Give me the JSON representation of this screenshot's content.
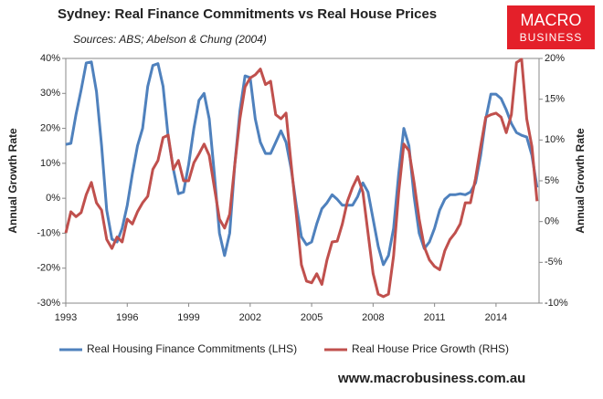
{
  "chart_data": {
    "type": "line",
    "title": "Sydney: Real Finance Commitments vs Real House Prices",
    "subtitle": "Sources: ABS; Abelson & Chung (2004)",
    "y_label": "Annual Growth Rate",
    "y2_label": "Annual Growth Rate",
    "x": [
      1993,
      1993.25,
      1993.5,
      1993.75,
      1994,
      1994.25,
      1994.5,
      1994.75,
      1995,
      1995.25,
      1995.5,
      1995.75,
      1996,
      1996.25,
      1996.5,
      1996.75,
      1997,
      1997.25,
      1997.5,
      1997.75,
      1998,
      1998.25,
      1998.5,
      1998.75,
      1999,
      1999.25,
      1999.5,
      1999.75,
      2000,
      2000.25,
      2000.5,
      2000.75,
      2001,
      2001.25,
      2001.5,
      2001.75,
      2002,
      2002.25,
      2002.5,
      2002.75,
      2003,
      2003.25,
      2003.5,
      2003.75,
      2004,
      2004.25,
      2004.5,
      2004.75,
      2005,
      2005.25,
      2005.5,
      2005.75,
      2006,
      2006.25,
      2006.5,
      2006.75,
      2007,
      2007.25,
      2007.5,
      2007.75,
      2008,
      2008.25,
      2008.5,
      2008.75,
      2009,
      2009.25,
      2009.5,
      2009.75,
      2010,
      2010.25,
      2010.5,
      2010.75,
      2011,
      2011.25,
      2011.5,
      2011.75,
      2012,
      2012.25,
      2012.5,
      2012.75,
      2013,
      2013.25,
      2013.5,
      2013.75,
      2014,
      2014.25,
      2014.5,
      2014.75,
      2015,
      2015.25,
      2015.5,
      2015.75,
      2016
    ],
    "series": [
      {
        "name": "Real Housing Finance Commitments (LHS)",
        "color": "#4f81bd",
        "values": [
          15.4,
          15.7,
          24,
          31,
          38.7,
          39,
          30.5,
          15,
          -3.4,
          -11.7,
          -12.5,
          -8.6,
          -2,
          7,
          15,
          20,
          32,
          38,
          38.5,
          32,
          17.5,
          8.4,
          1.3,
          1.8,
          9.7,
          20,
          28,
          30,
          22.7,
          7,
          -10,
          -16.4,
          -10,
          9.7,
          25,
          35,
          34.5,
          22.7,
          16,
          12.8,
          12.8,
          16,
          19.3,
          16,
          8.4,
          -2,
          -11,
          -13.3,
          -12.5,
          -7.3,
          -3,
          -1.3,
          1,
          -0.3,
          -2,
          -2,
          -2,
          0.5,
          4.4,
          1.8,
          -6,
          -13.8,
          -19,
          -16.4,
          -8.6,
          7,
          20,
          15,
          0.5,
          -10,
          -14.4,
          -12.5,
          -8.6,
          -3.4,
          -0.3,
          1,
          1,
          1.3,
          1,
          1.8,
          4.4,
          12.3,
          22.7,
          29.8,
          29.8,
          28.5,
          25.3,
          21.4,
          18.8,
          18,
          17.5,
          12.3,
          3.1
        ]
      },
      {
        "name": "Real House Price Growth (RHS)",
        "color": "#c0504d",
        "axis": "y2",
        "values": [
          -1.4,
          1.2,
          0.6,
          1.1,
          3.3,
          4.8,
          2.3,
          1.4,
          -2.2,
          -3.3,
          -1.9,
          -2.5,
          0.3,
          -0.3,
          1.2,
          2.3,
          3.1,
          6.4,
          7.5,
          10.3,
          10.6,
          6.4,
          7.5,
          5,
          5,
          7.2,
          8.3,
          9.5,
          8.1,
          4.2,
          0.3,
          -0.8,
          0.9,
          7,
          12.6,
          16.5,
          17.6,
          18,
          18.7,
          16.8,
          17.2,
          13.1,
          12.6,
          13.3,
          7,
          0.9,
          -5.3,
          -7.3,
          -7.5,
          -6.4,
          -7.7,
          -4.7,
          -2.5,
          -2.4,
          -0.3,
          2.5,
          4.2,
          5.5,
          3.6,
          -1.4,
          -6.4,
          -8.9,
          -9.2,
          -8.9,
          -4.2,
          3.6,
          9.5,
          8.7,
          4.8,
          0.3,
          -3.1,
          -4.7,
          -5.5,
          -5.9,
          -3.6,
          -2.2,
          -1.4,
          -0.3,
          2.3,
          2.3,
          5.3,
          9.2,
          12.8,
          13.1,
          13.3,
          12.8,
          10.9,
          13.1,
          19.5,
          19.9,
          12.6,
          9.2,
          2.5
        ]
      }
    ],
    "xlim": [
      1993,
      2016.1
    ],
    "xticks": [
      1993,
      1996,
      1999,
      2002,
      2005,
      2008,
      2011,
      2014
    ],
    "ylim": [
      -30,
      40
    ],
    "yticks": [
      {
        "value": -30,
        "label": "-30%"
      },
      {
        "value": -20,
        "label": "-20%"
      },
      {
        "value": -10,
        "label": "-10%"
      },
      {
        "value": 0,
        "label": "0%"
      },
      {
        "value": 10,
        "label": "10%"
      },
      {
        "value": 20,
        "label": "20%"
      },
      {
        "value": 30,
        "label": "30%"
      },
      {
        "value": 40,
        "label": "40%"
      }
    ],
    "y2lim": [
      -10,
      20
    ],
    "y2ticks": [
      {
        "value": -10,
        "label": "-10%"
      },
      {
        "value": -5,
        "label": "-5%"
      },
      {
        "value": 0,
        "label": "0%"
      },
      {
        "value": 5,
        "label": "5%"
      },
      {
        "value": 10,
        "label": "10%"
      },
      {
        "value": 15,
        "label": "15%"
      },
      {
        "value": 20,
        "label": "20%"
      }
    ],
    "grid": false,
    "legend": "bottom"
  },
  "branding": {
    "logo_top": "MACRO",
    "logo_bottom": "BUSINESS",
    "website": "www.macrobusiness.com.au"
  }
}
